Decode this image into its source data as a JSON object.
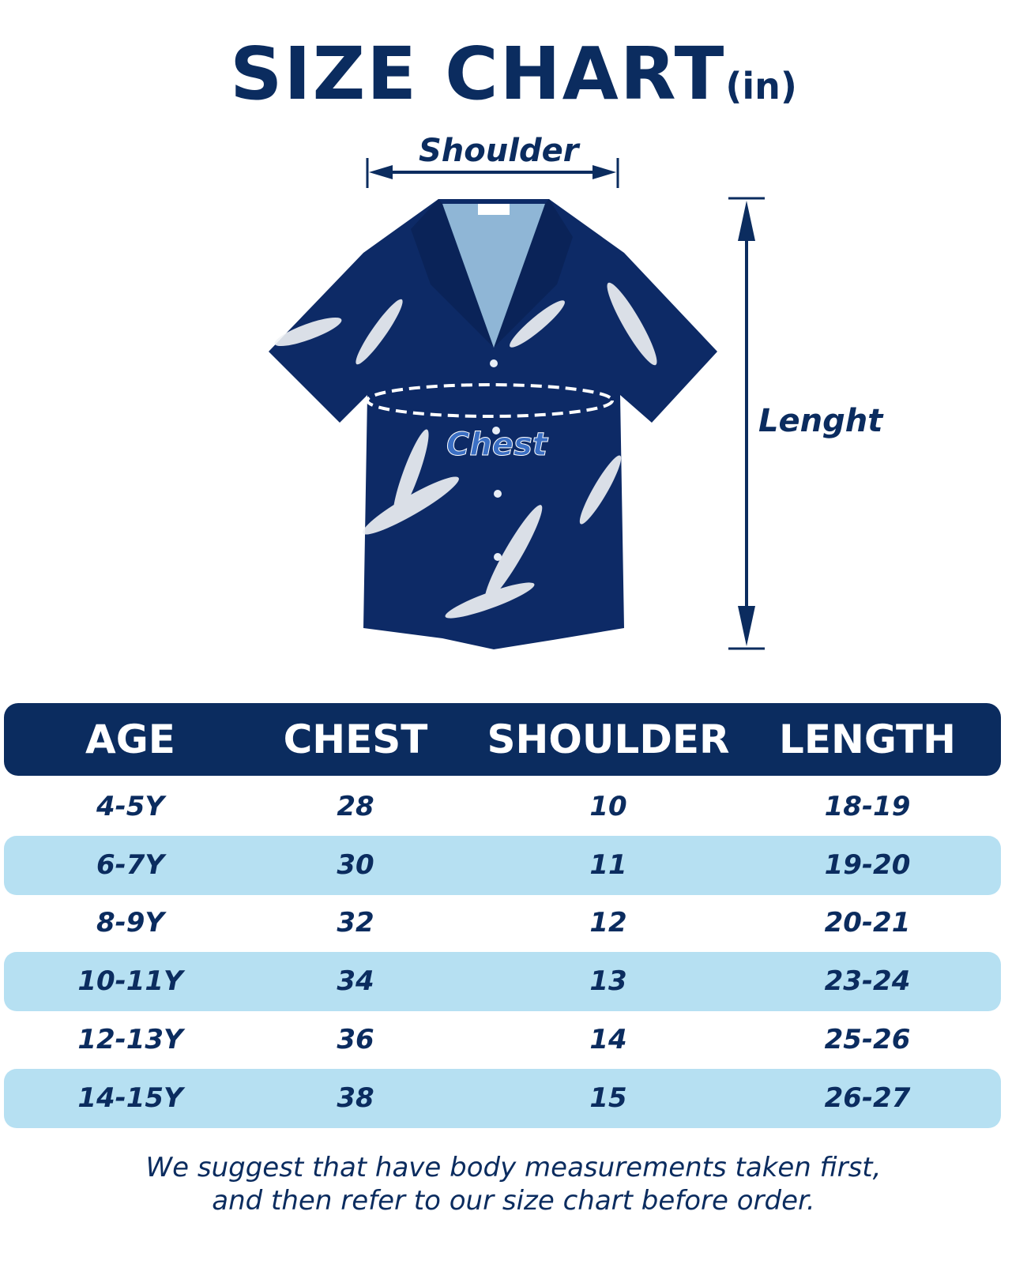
{
  "title": {
    "main": "SIZE CHART",
    "unit": "(in)"
  },
  "diagram": {
    "shoulder_label": "Shoulder",
    "length_label": "Lenght",
    "chest_label": "Chest"
  },
  "colors": {
    "navy": "#0b2c5f",
    "light_blue_row": "#b6e0f2",
    "white": "#ffffff"
  },
  "table": {
    "headers": [
      "AGE",
      "CHEST",
      "SHOULDER",
      "LENGTH"
    ],
    "rows": [
      [
        "4-5Y",
        "28",
        "10",
        "18-19"
      ],
      [
        "6-7Y",
        "30",
        "11",
        "19-20"
      ],
      [
        "8-9Y",
        "32",
        "12",
        "20-21"
      ],
      [
        "10-11Y",
        "34",
        "13",
        "23-24"
      ],
      [
        "12-13Y",
        "36",
        "14",
        "25-26"
      ],
      [
        "14-15Y",
        "38",
        "15",
        "26-27"
      ]
    ]
  },
  "footer": {
    "line1": "We suggest that have body measurements taken first,",
    "line2": "and then refer to our size chart before order."
  }
}
